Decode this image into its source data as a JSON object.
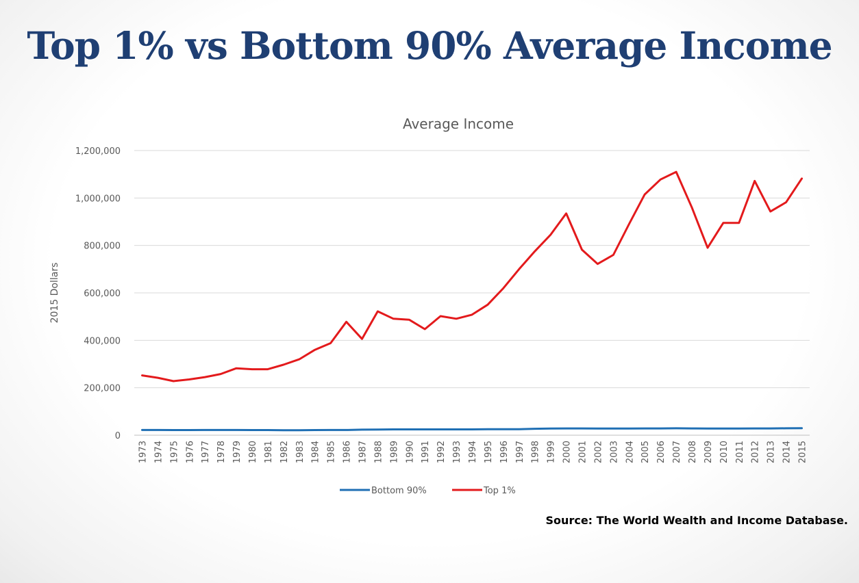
{
  "slide": {
    "title": "Top 1% vs Bottom 90% Average Income",
    "source": "Source: The World Wealth and Income Database."
  },
  "chart_data": {
    "type": "line",
    "title": "Average Income",
    "xlabel": "",
    "ylabel": "2015 Dollars",
    "ylim": [
      0,
      1200000
    ],
    "yticks": [
      0,
      200000,
      400000,
      600000,
      800000,
      1000000,
      1200000
    ],
    "ytick_labels": [
      "0",
      "200,000",
      "400,000",
      "600,000",
      "800,000",
      "1,000,000",
      "1,200,000"
    ],
    "grid": true,
    "legend": "bottom",
    "x": [
      "1973",
      "1974",
      "1975",
      "1976",
      "1977",
      "1978",
      "1979",
      "1980",
      "1981",
      "1982",
      "1983",
      "1984",
      "1985",
      "1986",
      "1987",
      "1988",
      "1989",
      "1990",
      "1991",
      "1992",
      "1993",
      "1994",
      "1995",
      "1996",
      "1997",
      "1998",
      "1999",
      "2000",
      "2001",
      "2002",
      "2003",
      "2004",
      "2005",
      "2006",
      "2007",
      "2008",
      "2009",
      "2010",
      "2011",
      "2012",
      "2013",
      "2014",
      "2015"
    ],
    "series": [
      {
        "name": "Bottom 90%",
        "color": "#1f6fb4",
        "values": [
          22000,
          22000,
          21500,
          21500,
          21800,
          22000,
          22000,
          21500,
          21500,
          21000,
          21000,
          21500,
          22000,
          22000,
          23500,
          24000,
          24500,
          24500,
          24500,
          24500,
          24500,
          24500,
          25000,
          25000,
          25500,
          27000,
          28000,
          28500,
          28500,
          28000,
          28000,
          28000,
          28500,
          28500,
          29000,
          28500,
          28000,
          28000,
          28000,
          28500,
          28500,
          29000,
          29500
        ]
      },
      {
        "name": "Top 1%",
        "color": "#e31a1c",
        "values": [
          252000,
          242000,
          228000,
          235000,
          245000,
          258000,
          282000,
          278000,
          278000,
          297000,
          320000,
          360000,
          388000,
          478000,
          406000,
          522000,
          491000,
          487000,
          447000,
          502000,
          491000,
          508000,
          550000,
          620000,
          700000,
          775000,
          845000,
          935000,
          782000,
          722000,
          760000,
          890000,
          1015000,
          1078000,
          1110000,
          960000,
          790000,
          895000,
          895000,
          1072000,
          943000,
          982000,
          1082000
        ]
      }
    ]
  }
}
